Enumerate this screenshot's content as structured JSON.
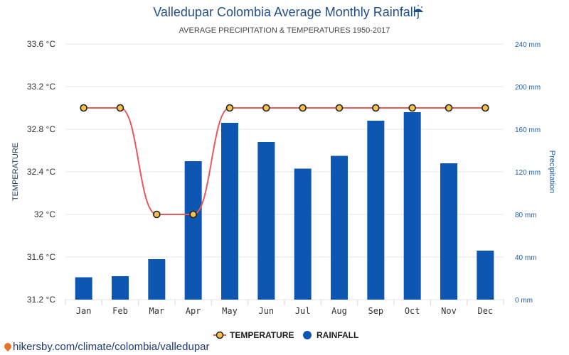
{
  "header": {
    "title": "Valledupar Colombia Average Monthly Rainfall",
    "title_icon": "umbrella-rain-icon",
    "subtitle": "AVERAGE PRECIPITATION & TEMPERATURES 1950-2017"
  },
  "footer": {
    "url": "hikersby.com/climate/colombia/valledupar",
    "icon": "location-pin-icon"
  },
  "colors": {
    "rainfall": "#0d57b3",
    "temperature_line": "#e8595b",
    "temperature_marker": "#f5c04a",
    "grid": "#e6e6e6"
  },
  "chart_data": {
    "type": "bar",
    "title": "Valledupar Colombia Average Monthly Rainfall",
    "subtitle": "AVERAGE PRECIPITATION & TEMPERATURES 1950-2017",
    "categories": [
      "Jan",
      "Feb",
      "Mar",
      "Apr",
      "May",
      "Jun",
      "Jul",
      "Aug",
      "Sep",
      "Oct",
      "Nov",
      "Dec"
    ],
    "ylabel_left": "TEMPERATURE",
    "ylabel_right": "Precipitation",
    "ylim_left": [
      31.2,
      33.6
    ],
    "ylim_right": [
      0,
      240
    ],
    "yticks_left": [
      "31.2 °C",
      "31.6 °C",
      "32 °C",
      "32.4 °C",
      "32.8 °C",
      "33.2 °C",
      "33.6 °C"
    ],
    "yticks_right": [
      "0 mm",
      "40 mm",
      "80 mm",
      "120 mm",
      "160 mm",
      "200 mm",
      "240 mm"
    ],
    "grid": true,
    "legend_position": "bottom-center",
    "series": [
      {
        "name": "RAINFALL",
        "type": "bar",
        "axis": "right",
        "unit": "mm",
        "values": [
          21,
          22,
          38,
          130,
          166,
          148,
          123,
          135,
          168,
          176,
          128,
          46
        ]
      },
      {
        "name": "TEMPERATURE",
        "type": "line",
        "axis": "left",
        "unit": "°C",
        "values": [
          33.0,
          33.0,
          32.0,
          32.0,
          33.0,
          33.0,
          33.0,
          33.0,
          33.0,
          33.0,
          33.0,
          33.0
        ]
      }
    ]
  }
}
